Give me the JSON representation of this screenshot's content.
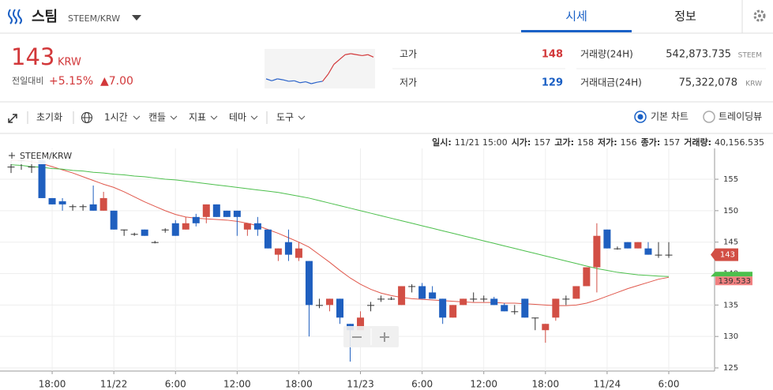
{
  "header": {
    "name": "스팀",
    "pair": "STEEM/KRW",
    "tabs": [
      "시세",
      "정보"
    ]
  },
  "ticker": {
    "price": 143,
    "unit": "KRW",
    "change_label": "전일대비",
    "change_rate": "+5.15%",
    "change_amount": "▲7.00",
    "high_label": "고가",
    "high": 148,
    "low_label": "저가",
    "low": 129,
    "volume_label": "거래량(24H)",
    "volume": "542,873.735",
    "volume_unit": "STEEM",
    "amount_label": "거래대금(24H)",
    "amount": "75,322,078",
    "amount_unit": "KRW",
    "sparkline": [
      136,
      135.6,
      136,
      135.8,
      135.5,
      135.6,
      135.2,
      135.4,
      135,
      135.3,
      135.5,
      137,
      139,
      140,
      141,
      141.2,
      141,
      140.8,
      141,
      140.5
    ],
    "sparkline_colors": [
      "#2a62c9",
      "#d2383a"
    ]
  },
  "toolbar": {
    "items": [
      "초기화",
      "1시간",
      "캔들",
      "지표",
      "테마",
      "도구"
    ],
    "modes": [
      "기본 차트",
      "트레이딩뷰"
    ]
  },
  "info": [
    [
      "일시:",
      "11/21 15:00"
    ],
    [
      "시가:",
      157
    ],
    [
      "고가:",
      158
    ],
    [
      "저가:",
      156
    ],
    [
      "종가:",
      157
    ],
    [
      "거래량:",
      "40,156.535"
    ]
  ],
  "chart_data": {
    "type": "candlestick",
    "title": "STEEM/KRW",
    "categories": [
      null,
      null,
      null,
      null,
      "18:00",
      null,
      null,
      null,
      null,
      null,
      "11/22",
      null,
      null,
      null,
      null,
      null,
      "6:00",
      null,
      null,
      null,
      null,
      null,
      "12:00",
      null,
      null,
      null,
      null,
      null,
      "18:00",
      null,
      null,
      null,
      null,
      null,
      "11/23",
      null,
      null,
      null,
      null,
      null,
      "6:00",
      null,
      null,
      null,
      null,
      null,
      "12:00",
      null,
      null,
      null,
      null,
      null,
      "18:00",
      null,
      null,
      null,
      null,
      null,
      "11/24",
      null,
      null,
      null,
      null,
      null,
      "6:00"
    ],
    "open": [
      157,
      158,
      157,
      158,
      152,
      151.5,
      150.7,
      150.7,
      151,
      150,
      150,
      147,
      146.3,
      147,
      145,
      147,
      148,
      147,
      149,
      149,
      151,
      150,
      150,
      147,
      148,
      147,
      143,
      145,
      142.5,
      142,
      135,
      135,
      136,
      132,
      131,
      135,
      136,
      136,
      135,
      138,
      138,
      137,
      136,
      133,
      135,
      136,
      136,
      136,
      135,
      134,
      136,
      133,
      131,
      133,
      136,
      136,
      138,
      141,
      147,
      144,
      145,
      144,
      144,
      143,
      143
    ],
    "high": [
      158,
      158.5,
      158,
      158.3,
      152,
      152,
      151,
      151,
      154,
      153,
      150,
      147,
      146.5,
      147,
      145.2,
      147.2,
      148.5,
      149,
      149.5,
      151,
      151,
      150,
      150,
      148,
      149,
      147,
      144,
      147,
      145,
      142,
      136,
      136,
      136,
      132,
      134,
      135.5,
      136.5,
      136.3,
      138,
      138.3,
      138.5,
      138,
      136,
      135,
      136,
      137,
      136.5,
      136.3,
      135.3,
      135,
      136,
      133,
      132,
      136,
      136.5,
      138,
      141,
      148,
      147,
      144.3,
      145,
      145,
      145,
      145,
      145
    ],
    "low": [
      156,
      156.5,
      156,
      152,
      151,
      150,
      150,
      150,
      150,
      150,
      147,
      146,
      146,
      146,
      144.8,
      146.5,
      146,
      147,
      147.5,
      148,
      149,
      149,
      146,
      146,
      146,
      144,
      142,
      142,
      142,
      130,
      134.5,
      134,
      132,
      126,
      131,
      134,
      135.5,
      135.8,
      135,
      137,
      136,
      136,
      132,
      133,
      135,
      135.5,
      135.5,
      135,
      134,
      133.5,
      133,
      131,
      129,
      132.5,
      135,
      136,
      138,
      137,
      144,
      143.8,
      144,
      144,
      143,
      142.5,
      142.5
    ],
    "close": [
      157,
      158,
      157,
      152,
      151,
      151,
      150.7,
      150.7,
      150,
      152,
      147,
      147,
      146.3,
      146,
      145,
      147,
      146,
      148,
      148,
      151,
      149,
      149,
      149,
      148,
      147,
      144,
      144,
      143,
      144,
      135,
      135,
      136,
      133,
      131,
      133,
      135,
      136,
      136,
      138,
      138,
      136,
      136,
      133,
      135,
      136,
      136,
      136,
      135,
      134,
      134,
      133,
      133,
      132,
      136,
      136,
      138,
      141,
      146,
      144,
      144,
      144,
      145,
      143,
      143,
      143
    ],
    "up_color": "#d24f45",
    "down_color": "#1f5fbf",
    "series": [
      {
        "color": "#e0584c",
        "values": [
          158,
          158,
          157.8,
          157.5,
          157,
          156.5,
          156,
          155.4,
          154.8,
          154.2,
          153.7,
          153,
          152.2,
          151.4,
          150.7,
          150,
          149.4,
          149,
          148.8,
          148.7,
          148.6,
          148.5,
          148.3,
          148,
          147.6,
          147,
          146.4,
          145.7,
          145,
          144.2,
          143,
          141.8,
          140.5,
          139.3,
          138.3,
          137.5,
          136.9,
          136.5,
          136.2,
          136,
          135.9,
          135.8,
          135.7,
          135.6,
          135.5,
          135.4,
          135.4,
          135.4,
          135.3,
          135.3,
          135.2,
          135.1,
          135,
          134.9,
          134.9,
          135,
          135.3,
          135.8,
          136.4,
          137,
          137.6,
          138.1,
          138.6,
          139.1,
          139.4
        ]
      },
      {
        "color": "#4cbf4c",
        "values": [
          157.3,
          157.2,
          157,
          156.9,
          156.7,
          156.6,
          156.4,
          156.3,
          156.1,
          156,
          155.8,
          155.7,
          155.5,
          155.4,
          155.2,
          155,
          154.9,
          154.7,
          154.5,
          154.3,
          154.1,
          153.9,
          153.7,
          153.5,
          153.3,
          153.1,
          152.9,
          152.6,
          152.3,
          152,
          151.6,
          151.2,
          150.8,
          150.4,
          150,
          149.6,
          149.2,
          148.8,
          148.4,
          148,
          147.6,
          147.2,
          146.8,
          146.4,
          146,
          145.6,
          145.2,
          144.8,
          144.4,
          144,
          143.6,
          143.2,
          142.8,
          142.4,
          142,
          141.6,
          141.2,
          140.8,
          140.5,
          140.2,
          140,
          139.8,
          139.7,
          139.6,
          139.533
        ]
      }
    ],
    "ylim": [
      124.5,
      159.9
    ],
    "yticks": [
      125,
      130,
      135,
      140,
      145,
      150,
      155
    ],
    "grid": true
  }
}
